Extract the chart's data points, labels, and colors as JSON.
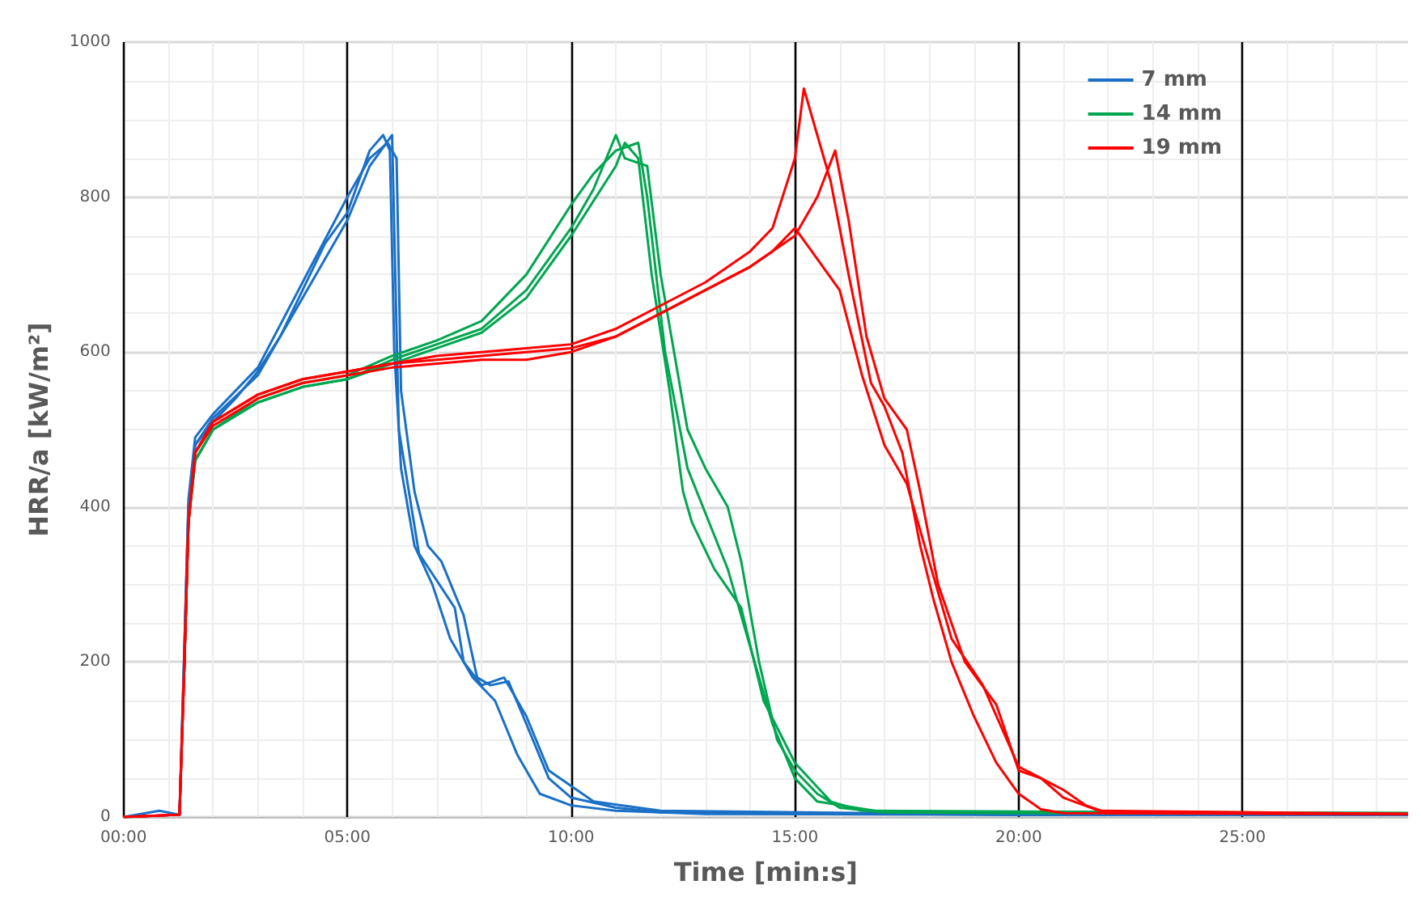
{
  "chart_data": {
    "type": "line",
    "xlabel": "Time [min:s]",
    "ylabel": "HRR/a [kW/m²]",
    "xlim": [
      0,
      28.7
    ],
    "ylim": [
      0,
      1000
    ],
    "xticks": [
      {
        "value": 0,
        "label": "00:00"
      },
      {
        "value": 5,
        "label": "05:00"
      },
      {
        "value": 10,
        "label": "10:00"
      },
      {
        "value": 15,
        "label": "15:00"
      },
      {
        "value": 20,
        "label": "20:00"
      },
      {
        "value": 25,
        "label": "25:00"
      }
    ],
    "yticks": [
      0,
      200,
      400,
      600,
      800,
      1000
    ],
    "grid": true,
    "legend": "top right",
    "marker": "none",
    "line_style": "solid",
    "series": [
      {
        "name": "7 mm",
        "color": "#1a70c6",
        "x": [
          0,
          0.8,
          1.25,
          1.35,
          1.45,
          1.6,
          2,
          2.5,
          3,
          3.5,
          4,
          4.5,
          5,
          5.5,
          5.8,
          5.95,
          6.05,
          6.2,
          6.5,
          6.9,
          7.3,
          7.8,
          8.3,
          8.8,
          9.3,
          10,
          11,
          13,
          20,
          28.7
        ],
        "values": [
          0,
          8,
          3,
          200,
          400,
          480,
          510,
          540,
          575,
          620,
          680,
          740,
          780,
          860,
          880,
          860,
          600,
          450,
          350,
          300,
          230,
          180,
          150,
          80,
          30,
          15,
          8,
          4,
          3,
          3
        ]
      },
      {
        "color": "#1a70c6",
        "x": [
          0,
          1.25,
          1.35,
          1.45,
          1.6,
          2,
          3,
          4,
          5,
          5.5,
          5.9,
          6.1,
          6.2,
          6.5,
          6.8,
          7.1,
          7.6,
          7.9,
          8.2,
          8.6,
          9,
          9.5,
          10,
          11,
          12,
          20,
          28.7
        ],
        "values": [
          0,
          3,
          200,
          410,
          490,
          520,
          580,
          690,
          800,
          850,
          870,
          850,
          550,
          420,
          350,
          330,
          260,
          180,
          170,
          175,
          120,
          50,
          25,
          12,
          6,
          3,
          3
        ]
      },
      {
        "color": "#1a70c6",
        "x": [
          0,
          1.25,
          1.35,
          1.45,
          1.6,
          2,
          3,
          4,
          5,
          5.5,
          6,
          6.15,
          6.6,
          7.4,
          7.6,
          8,
          8.5,
          9,
          9.5,
          10.5,
          12,
          20,
          28.7
        ],
        "values": [
          0,
          3,
          190,
          400,
          480,
          515,
          570,
          670,
          770,
          840,
          880,
          500,
          340,
          270,
          200,
          170,
          180,
          130,
          60,
          20,
          8,
          3,
          3
        ]
      },
      {
        "name": "14 mm",
        "color": "#00a650",
        "x": [
          1.35,
          1.45,
          1.6,
          2,
          3,
          4,
          5,
          6,
          7,
          8,
          9,
          10,
          10.5,
          11,
          11.2,
          11.7,
          12,
          12.3,
          12.6,
          13,
          13.5,
          13.8,
          14.2,
          14.6,
          15,
          15.5,
          16,
          17,
          20,
          28.7
        ],
        "values": [
          180,
          380,
          460,
          500,
          535,
          555,
          565,
          590,
          610,
          630,
          680,
          760,
          810,
          880,
          850,
          840,
          700,
          600,
          500,
          450,
          400,
          330,
          200,
          100,
          60,
          30,
          12,
          6,
          5,
          5
        ]
      },
      {
        "color": "#00a650",
        "x": [
          1.35,
          1.45,
          1.6,
          2,
          3,
          4,
          5,
          6,
          7,
          8,
          9,
          10,
          10.5,
          11,
          11.5,
          11.7,
          12.1,
          12.6,
          13.5,
          14,
          14.5,
          15,
          15.5,
          17,
          28.7
        ],
        "values": [
          180,
          380,
          460,
          500,
          540,
          560,
          570,
          595,
          615,
          640,
          700,
          790,
          830,
          860,
          870,
          800,
          600,
          450,
          320,
          220,
          120,
          50,
          20,
          6,
          5
        ]
      },
      {
        "color": "#00a650",
        "x": [
          1.35,
          1.45,
          1.6,
          2,
          3,
          4,
          5,
          6,
          7,
          8,
          9,
          10,
          11,
          11.2,
          11.5,
          11.8,
          12.2,
          12.5,
          12.7,
          13.2,
          13.8,
          14.3,
          15,
          15.8,
          16.5,
          28.7
        ],
        "values": [
          180,
          380,
          460,
          500,
          535,
          555,
          565,
          585,
          605,
          625,
          670,
          750,
          840,
          870,
          850,
          700,
          550,
          420,
          380,
          320,
          270,
          150,
          70,
          20,
          8,
          5
        ]
      },
      {
        "name": "19 mm",
        "color": "#ff0000",
        "x": [
          0,
          1.25,
          1.35,
          1.45,
          1.6,
          2,
          3,
          4,
          5,
          6,
          7,
          8,
          9,
          10,
          11,
          12,
          13,
          14,
          14.5,
          15,
          15.2,
          15.5,
          15.8,
          16.2,
          16.7,
          17,
          17.4,
          17.8,
          18.1,
          18.5,
          19,
          19.5,
          20,
          20.5,
          21,
          28.7
        ],
        "values": [
          0,
          3,
          180,
          380,
          470,
          510,
          545,
          565,
          575,
          585,
          595,
          600,
          605,
          610,
          630,
          660,
          690,
          730,
          760,
          850,
          940,
          880,
          820,
          700,
          560,
          530,
          470,
          350,
          280,
          200,
          130,
          70,
          30,
          10,
          5,
          4
        ]
      },
      {
        "color": "#ff0000",
        "x": [
          0,
          1.25,
          1.35,
          1.45,
          1.6,
          2,
          3,
          4,
          5,
          6,
          7,
          8,
          9,
          10,
          11,
          12,
          13,
          14,
          15,
          15.5,
          15.9,
          16.2,
          16.6,
          17,
          17.5,
          17.8,
          18.2,
          18.8,
          19.5,
          20,
          20.5,
          21,
          21.5,
          22,
          28.7
        ],
        "values": [
          0,
          3,
          180,
          380,
          470,
          510,
          545,
          565,
          575,
          585,
          590,
          595,
          600,
          605,
          620,
          650,
          680,
          710,
          750,
          800,
          860,
          770,
          620,
          540,
          500,
          420,
          300,
          200,
          145,
          60,
          50,
          35,
          15,
          5,
          4
        ]
      },
      {
        "color": "#ff0000",
        "x": [
          0,
          1.25,
          1.35,
          1.45,
          1.6,
          2,
          3,
          4,
          5,
          6,
          7,
          8,
          9,
          10,
          11,
          12,
          13,
          14,
          14.5,
          15,
          15.5,
          16,
          16.5,
          17,
          17.5,
          18,
          18.5,
          19.2,
          20,
          20.5,
          21,
          21.8,
          28.7
        ],
        "values": [
          0,
          3,
          180,
          380,
          470,
          505,
          540,
          560,
          570,
          580,
          585,
          590,
          590,
          600,
          620,
          650,
          680,
          710,
          730,
          760,
          720,
          680,
          570,
          480,
          430,
          330,
          230,
          170,
          65,
          50,
          25,
          8,
          4
        ]
      }
    ]
  }
}
